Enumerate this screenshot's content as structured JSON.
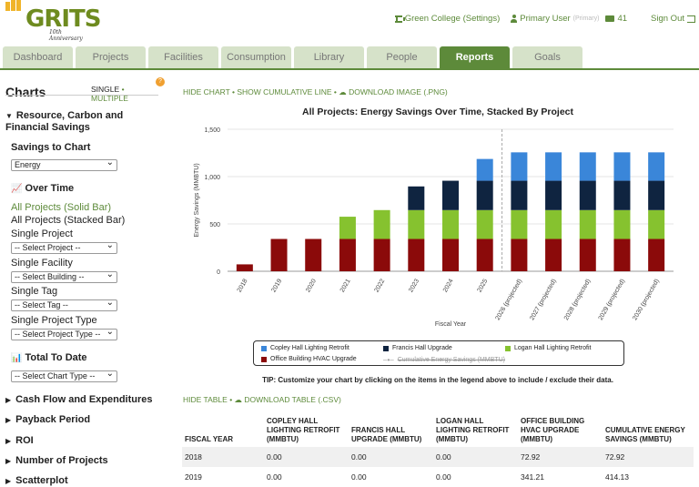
{
  "brand": {
    "name": "GRITS",
    "tagline": "10th Anniversary"
  },
  "topnav": {
    "org": "Green College (Settings)",
    "user": "Primary User",
    "user_tag": "(Primary)",
    "mail_count": "41",
    "signout": "Sign Out"
  },
  "tabs": [
    {
      "label": "Dashboard",
      "w": 77
    },
    {
      "label": "Projects",
      "w": 77
    },
    {
      "label": "Facilities",
      "w": 77
    },
    {
      "label": "Consumption",
      "w": 77
    },
    {
      "label": "Library",
      "w": 77
    },
    {
      "label": "People",
      "w": 77
    },
    {
      "label": "Reports",
      "w": 77
    },
    {
      "label": "Goals",
      "w": 77
    }
  ],
  "sidebar": {
    "title": "Charts",
    "toggle_single": "SINGLE",
    "toggle_multiple": "MULTIPLE",
    "badge": "?",
    "section_resource": "Resource, Carbon and Financial Savings",
    "savings_to_chart": "Savings to Chart",
    "savings_select": "Energy",
    "over_time": "Over Time",
    "all_projects_solid": "All Projects (Solid Bar)",
    "all_projects_stacked": "All Projects (Stacked Bar)",
    "single_project": "Single Project",
    "select_project": "-- Select Project --",
    "single_facility": "Single Facility",
    "select_building": "-- Select Building --",
    "single_tag": "Single Tag",
    "select_tag": "-- Select Tag --",
    "single_project_type": "Single Project Type",
    "select_project_type": "-- Select Project Type --",
    "total_to_date": "Total To Date",
    "select_chart_type": "-- Select Chart Type --",
    "cash_flow": "Cash Flow and Expenditures",
    "payback": "Payback Period",
    "roi": "ROI",
    "num_projects": "Number of Projects",
    "scatterplot": "Scatterplot"
  },
  "chart_links": {
    "hide_chart": "HIDE CHART",
    "show_cumulative": "SHOW CUMULATIVE LINE",
    "download_image": "DOWNLOAD IMAGE (.PNG)"
  },
  "table_links": {
    "hide_table": "HIDE TABLE",
    "download_table": "DOWNLOAD TABLE (.CSV)"
  },
  "tip": "TIP: Customize your chart by clicking on the items in the legend above to include / exclude their data.",
  "colors": {
    "copley": "#3a86d9",
    "francis": "#0f2440",
    "logan": "#86c22f",
    "office": "#8b0a0a",
    "accent": "#5d8a3a"
  },
  "chart_data": {
    "type": "bar",
    "stacked": true,
    "title": "All Projects: Energy Savings Over Time, Stacked By Project",
    "xlabel": "Fiscal Year",
    "ylabel": "Energy Savings (MMBTU)",
    "ylim": [
      0,
      1500
    ],
    "yticks": [
      "0",
      "500",
      "1,000",
      "1,500"
    ],
    "categories": [
      "2018",
      "2019",
      "2020",
      "2021",
      "2022",
      "2023",
      "2024",
      "2025",
      "2026 (projected)",
      "2027 (projected)",
      "2028 (projected)",
      "2029 (projected)",
      "2030 (projected)"
    ],
    "series": [
      {
        "name": "Office Building HVAC Upgrade",
        "values": [
          72.92,
          341.21,
          341.21,
          341.21,
          341.21,
          341.21,
          341.21,
          341.21,
          341.21,
          341.21,
          341.21,
          341.21,
          341.21
        ]
      },
      {
        "name": "Logan Hall Lighting Retrofit",
        "values": [
          0,
          0,
          0,
          235,
          305,
          305,
          305,
          305,
          305,
          305,
          305,
          305,
          305
        ]
      },
      {
        "name": "Francis Hall Upgrade",
        "values": [
          0,
          0,
          0,
          0,
          0,
          250,
          310,
          310,
          310,
          310,
          310,
          310,
          310
        ]
      },
      {
        "name": "Copley Hall Lighting Retrofit",
        "values": [
          0,
          0,
          0,
          0,
          0,
          0,
          0,
          230,
          300,
          300,
          300,
          300,
          300
        ]
      }
    ],
    "legend": [
      {
        "name": "Copley Hall Lighting Retrofit",
        "color": "#3a86d9"
      },
      {
        "name": "Francis Hall Upgrade",
        "color": "#0f2440"
      },
      {
        "name": "Logan Hall Lighting Retrofit",
        "color": "#86c22f"
      },
      {
        "name": "Office Building HVAC Upgrade",
        "color": "#8b0a0a"
      },
      {
        "name": "Cumulative Energy Savings (MMBTU)",
        "color": "#999999",
        "hidden": true
      }
    ],
    "legend_placement": "bottom",
    "projection_divider_after": "2025"
  },
  "table": {
    "headers": [
      "FISCAL YEAR",
      "COPLEY HALL LIGHTING RETROFIT (MMBTU)",
      "FRANCIS HALL UPGRADE (MMBTU)",
      "LOGAN HALL LIGHTING RETROFIT (MMBTU)",
      "OFFICE BUILDING HVAC UPGRADE (MMBTU)",
      "CUMULATIVE ENERGY SAVINGS (MMBTU)"
    ],
    "rows": [
      [
        "2018",
        "0.00",
        "0.00",
        "0.00",
        "72.92",
        "72.92"
      ],
      [
        "2019",
        "0.00",
        "0.00",
        "0.00",
        "341.21",
        "414.13"
      ]
    ]
  }
}
